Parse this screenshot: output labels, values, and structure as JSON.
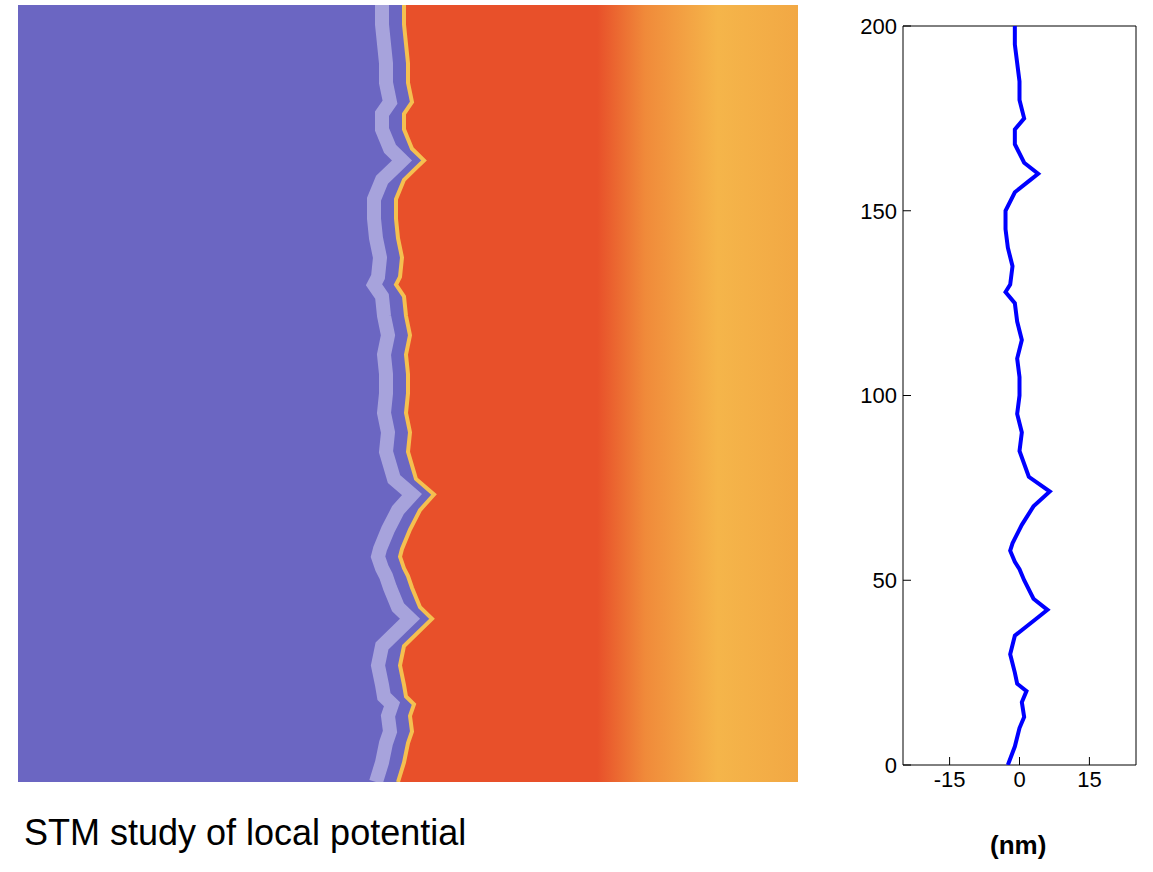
{
  "chart_data": {
    "type": "line",
    "caption": "STM study of local potential",
    "xlabel": "(nm)",
    "x": [
      -2.5,
      -1,
      0,
      1,
      0.5,
      1.5,
      -0.5,
      -1,
      -2,
      -1,
      4,
      6,
      3,
      1,
      0,
      -1,
      -2,
      -1.5,
      0.5,
      3,
      6.5,
      2,
      0,
      0.5,
      -0.5,
      0,
      0,
      -0.5,
      0.5,
      -0.5,
      -1,
      -3,
      -2,
      -1.5,
      -2.5,
      -3,
      -3,
      -1,
      2,
      4,
      1,
      -1,
      -1,
      1,
      0,
      0,
      -0.5,
      -1,
      -1
    ],
    "y": [
      0,
      5,
      10,
      13,
      17,
      20,
      22,
      25,
      30,
      35,
      40,
      42,
      45,
      50,
      53,
      55,
      58,
      60,
      65,
      70,
      74,
      78,
      85,
      90,
      95,
      100,
      105,
      110,
      115,
      120,
      125,
      128,
      130,
      135,
      140,
      145,
      150,
      155,
      158,
      160,
      163,
      168,
      172,
      175,
      180,
      185,
      190,
      195,
      200
    ],
    "xlim": [
      -25,
      25
    ],
    "ylim": [
      0,
      200
    ],
    "xticks": [
      -15,
      0,
      15
    ],
    "yticks": [
      0,
      50,
      100,
      150,
      200
    ],
    "color": "#0000ff",
    "marker": "none",
    "grid": false
  }
}
